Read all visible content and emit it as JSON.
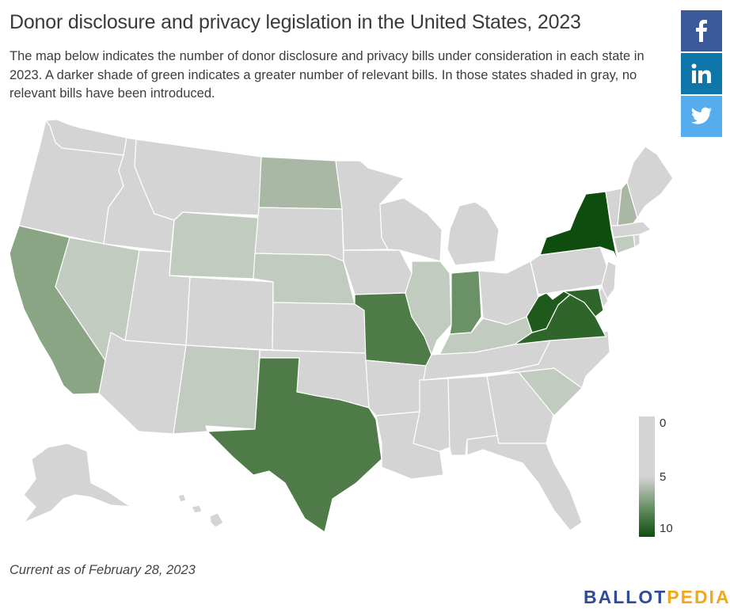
{
  "title": "Donor disclosure and privacy legislation in the United States, 2023",
  "description": "The map below indicates the number of donor disclosure and privacy bills under consideration in each state in 2023. A darker shade of green indicates a greater number of relevant bills. In those states shaded in gray, no relevant bills have been introduced.",
  "share_buttons": [
    {
      "network": "facebook",
      "icon": "facebook-icon",
      "color": "#3b5998"
    },
    {
      "network": "linkedin",
      "icon": "linkedin-icon",
      "color": "#0e76a8"
    },
    {
      "network": "twitter",
      "icon": "twitter-icon",
      "color": "#55acee"
    }
  ],
  "legend": {
    "min_label": "0",
    "mid_label": "5",
    "max_label": "10",
    "min_color": "#d4d4d4",
    "max_color": "#0f4d0f"
  },
  "colors": {
    "no_bills": "#d4d4d4",
    "low": "#c2cbc0",
    "mid_low": "#a8b8a4",
    "mid": "#8aa584",
    "mid_high": "#6b9167",
    "high": "#4e7b48",
    "very_high": "#2f652b",
    "max": "#0f4d0f"
  },
  "map": {
    "states_with_bills": [
      "NY",
      "WV",
      "VA",
      "TX",
      "MO",
      "CA",
      "IN",
      "ND",
      "IL",
      "KY",
      "NE",
      "WY",
      "NV",
      "NM",
      "SC",
      "NH",
      "CT",
      "MD"
    ],
    "bill_counts": {
      "NY": 10,
      "WV": 9,
      "VA": 8,
      "TX": 7,
      "MO": 7,
      "CA": 5,
      "IN": 5,
      "ND": 4,
      "IL": 3,
      "KY": 3,
      "NE": 3,
      "WY": 3,
      "NV": 3,
      "NM": 3,
      "SC": 3,
      "NH": 3,
      "CT": 3,
      "MD": 7
    }
  },
  "footnote": "Current as of February 28, 2023",
  "logo": {
    "ballot": "BALLOT",
    "pedia": "PEDIA"
  }
}
